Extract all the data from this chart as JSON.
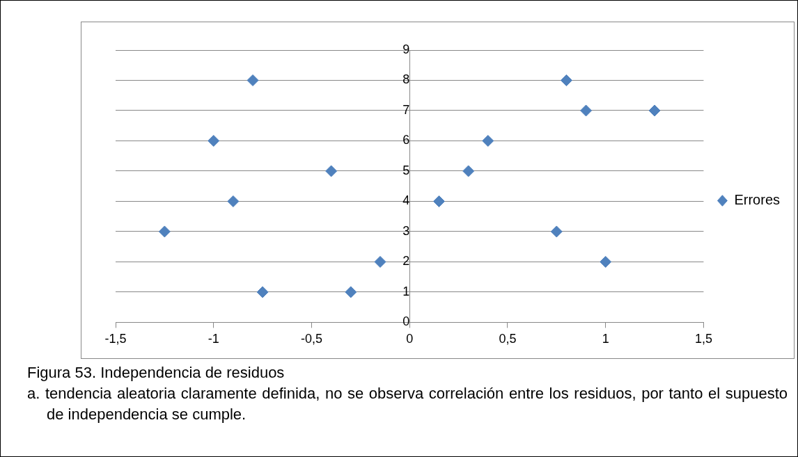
{
  "chart_data": {
    "type": "scatter",
    "series": [
      {
        "name": "Errores",
        "color": "#4f81bd",
        "x": [
          -0.8,
          0.8,
          0.9,
          1.25,
          -1.0,
          0.4,
          -0.4,
          0.3,
          -0.9,
          0.15,
          -1.25,
          0.75,
          -0.15,
          1.0,
          -0.75,
          -0.3
        ],
        "values": [
          8,
          8,
          7,
          7,
          6,
          6,
          5,
          5,
          4,
          4,
          3,
          3,
          2,
          2,
          1,
          1
        ]
      }
    ],
    "xlim": [
      -1.5,
      1.5
    ],
    "xticks": [
      {
        "value": -1.5,
        "label": "-1,5"
      },
      {
        "value": -1,
        "label": "-1"
      },
      {
        "value": -0.5,
        "label": "-0,5"
      },
      {
        "value": 0,
        "label": "0"
      },
      {
        "value": 0.5,
        "label": "0,5"
      },
      {
        "value": 1,
        "label": "1"
      },
      {
        "value": 1.5,
        "label": "1,5"
      }
    ],
    "ylim": [
      0,
      9
    ],
    "yticks": [
      0,
      1,
      2,
      3,
      4,
      5,
      6,
      7,
      8,
      9
    ],
    "grid": "y",
    "legend": "right",
    "marker": "diamond",
    "annotations": [
      "Figura 53. Independencia de residuos",
      "a. tendencia aleatoria claramente definida, no se observa correlación entre los residuos, por tanto el supuesto de independencia se cumple."
    ]
  }
}
